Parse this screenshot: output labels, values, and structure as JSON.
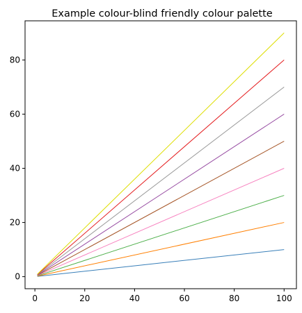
{
  "chart_data": {
    "type": "line",
    "title": "Example colour-blind friendly colour palette",
    "xlabel": "",
    "ylabel": "",
    "x": [
      1,
      100
    ],
    "xlim": [
      -3.95,
      104.95
    ],
    "ylim": [
      -4.45,
      94.45
    ],
    "xticks": [
      0,
      20,
      40,
      60,
      80,
      100
    ],
    "yticks": [
      0,
      20,
      40,
      60,
      80
    ],
    "grid": false,
    "legend": "none",
    "series": [
      {
        "color": "#377eb8",
        "values": [
          0.1,
          10
        ]
      },
      {
        "color": "#ff7f00",
        "values": [
          0.2,
          20
        ]
      },
      {
        "color": "#4daf4a",
        "values": [
          0.3,
          30
        ]
      },
      {
        "color": "#f781bf",
        "values": [
          0.4,
          40
        ]
      },
      {
        "color": "#a65628",
        "values": [
          0.5,
          50
        ]
      },
      {
        "color": "#984ea3",
        "values": [
          0.6,
          60
        ]
      },
      {
        "color": "#999999",
        "values": [
          0.7,
          70
        ]
      },
      {
        "color": "#e41a1c",
        "values": [
          0.8,
          80
        ]
      },
      {
        "color": "#dede00",
        "values": [
          0.9,
          90
        ]
      }
    ]
  }
}
